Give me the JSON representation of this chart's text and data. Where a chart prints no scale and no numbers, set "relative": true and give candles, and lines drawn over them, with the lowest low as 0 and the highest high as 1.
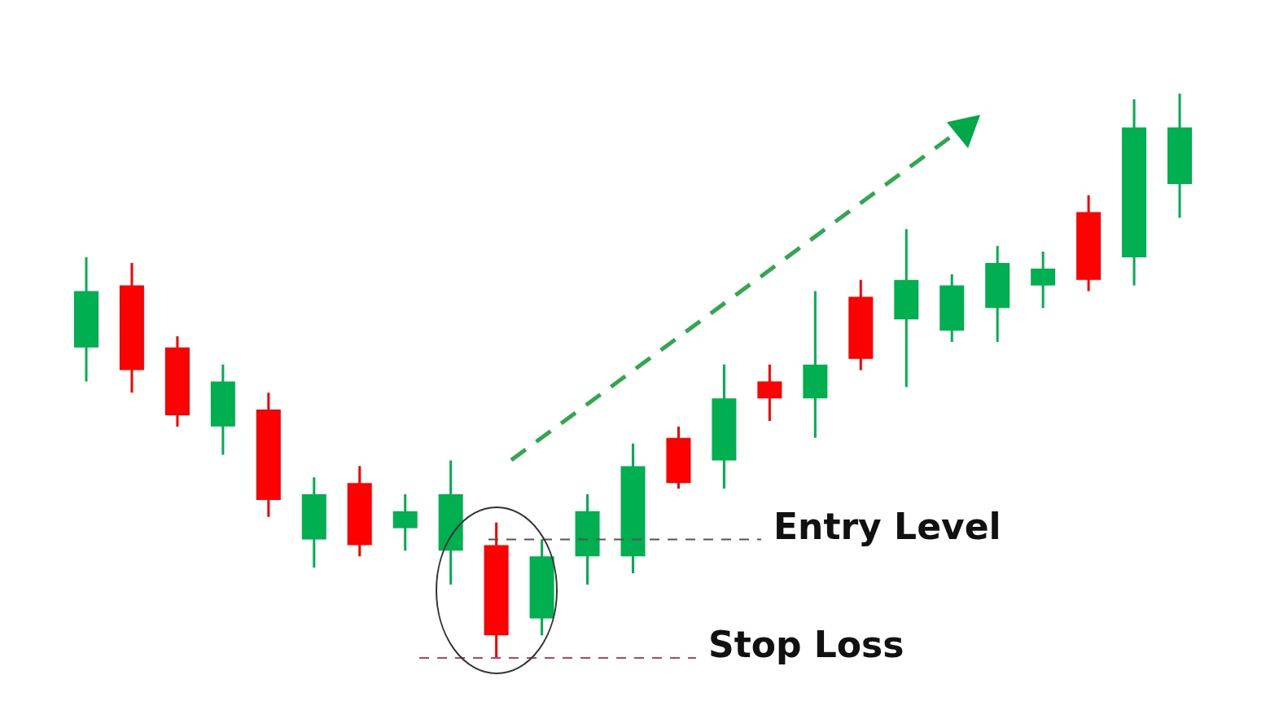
{
  "chart_data": {
    "type": "candlestick",
    "relative": true,
    "categories": [
      null,
      null,
      null,
      null,
      null,
      null,
      null,
      null,
      null,
      null,
      null,
      null,
      null,
      null,
      null,
      null,
      null,
      null,
      null,
      null,
      null,
      null,
      null,
      null,
      null
    ],
    "ohlc": [
      [
        0.55,
        0.71,
        0.49,
        0.65
      ],
      [
        0.66,
        0.7,
        0.47,
        0.51
      ],
      [
        0.55,
        0.57,
        0.41,
        0.43
      ],
      [
        0.41,
        0.52,
        0.36,
        0.49
      ],
      [
        0.44,
        0.47,
        0.25,
        0.28
      ],
      [
        0.21,
        0.32,
        0.16,
        0.29
      ],
      [
        0.31,
        0.34,
        0.18,
        0.2
      ],
      [
        0.23,
        0.29,
        0.19,
        0.26
      ],
      [
        0.19,
        0.35,
        0.13,
        0.29
      ],
      [
        0.2,
        0.24,
        0,
        0.04
      ],
      [
        0.07,
        0.21,
        0.04,
        0.18
      ],
      [
        0.18,
        0.29,
        0.13,
        0.26
      ],
      [
        0.18,
        0.38,
        0.15,
        0.34
      ],
      [
        0.39,
        0.41,
        0.3,
        0.31
      ],
      [
        0.35,
        0.52,
        0.3,
        0.46
      ],
      [
        0.49,
        0.52,
        0.42,
        0.46
      ],
      [
        0.46,
        0.65,
        0.39,
        0.52
      ],
      [
        0.64,
        0.67,
        0.51,
        0.53
      ],
      [
        0.6,
        0.76,
        0.48,
        0.67
      ],
      [
        0.58,
        0.68,
        0.56,
        0.66
      ],
      [
        0.62,
        0.73,
        0.56,
        0.7
      ],
      [
        0.66,
        0.72,
        0.62,
        0.69
      ],
      [
        0.79,
        0.82,
        0.65,
        0.67
      ],
      [
        0.71,
        0.99,
        0.66,
        0.94
      ],
      [
        0.84,
        1,
        0.78,
        0.94
      ]
    ],
    "colors": [
      "#00b050",
      "#ff0000",
      "#ff0000",
      "#00b050",
      "#ff0000",
      "#00b050",
      "#ff0000",
      "#00b050",
      "#00b050",
      "#ff0000",
      "#00b050",
      "#00b050",
      "#00b050",
      "#ff0000",
      "#00b050",
      "#ff0000",
      "#00b050",
      "#ff0000",
      "#00b050",
      "#00b050",
      "#00b050",
      "#00b050",
      "#ff0000",
      "#00b050",
      "#00b050"
    ],
    "ref_lines": [
      {
        "axis": "y",
        "value": 0.21,
        "label": "Entry Level",
        "color": "#555555",
        "line_style": "dashed"
      },
      {
        "axis": "y",
        "value": 0,
        "label": "Stop Loss",
        "color": "#c0406a",
        "line_style": "dashed"
      }
    ],
    "legend": false
  }
}
